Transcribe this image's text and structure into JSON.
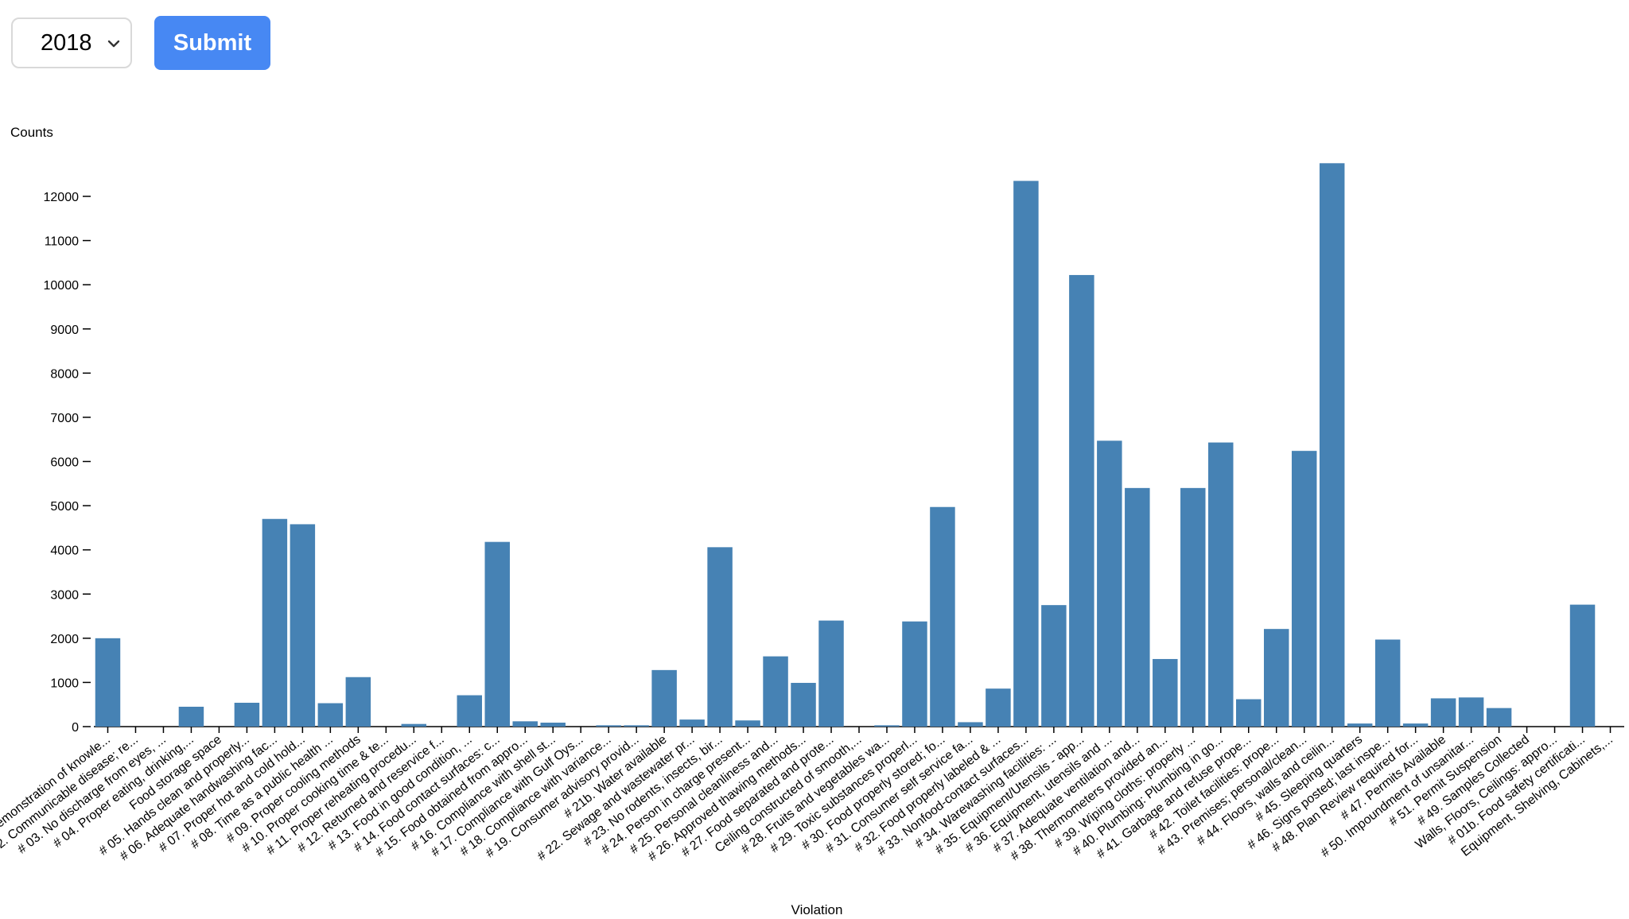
{
  "controls": {
    "year_value": "2018",
    "submit_label": "Submit"
  },
  "colors": {
    "bar": "#4682b4",
    "submit": "#4788f3"
  },
  "chart_data": {
    "type": "bar",
    "title": "",
    "xlabel": "Violation",
    "ylabel": "Counts",
    "ylim": [
      0,
      12800
    ],
    "yticks": [
      0,
      1000,
      2000,
      3000,
      4000,
      5000,
      6000,
      7000,
      8000,
      9000,
      10000,
      11000,
      12000
    ],
    "grid": false,
    "categories": [
      "Demonstration of knowle...",
      "# 02. Communicable disease; re...",
      "# 03. No discharge from eyes, ...",
      "# 04. Proper eating, drinking,...",
      "Food storage space",
      "# 05. Hands clean and properly...",
      "# 06. Adequate handwashing fac...",
      "# 07. Proper hot and cold hold...",
      "# 08. Time as a public health ...",
      "# 09. Proper cooling methods",
      "# 10. Proper cooking time & te...",
      "# 11. Proper reheating procedu...",
      "# 12. Returned and reservice f...",
      "# 13. Food in good condition, ...",
      "# 14. Food contact surfaces: c...",
      "# 15. Food obtained from appro...",
      "# 16. Compliance with shell st...",
      "# 17. Compliance with Gulf Oys...",
      "# 18. Compliance with variance...",
      "# 19. Consumer advisory provid...",
      "# 21b. Water available",
      "# 22. Sewage and wastewater pr...",
      "# 23. No rodents, insects, bir...",
      "# 24. Person in charge present...",
      "# 25. Personal cleanliness and...",
      "# 26. Approved thawing methods...",
      "# 27. Food separated and prote...",
      "Ceiling constructed of smooth,...",
      "# 28. Fruits and vegetables wa...",
      "# 29. Toxic substances properl...",
      "# 30. Food properly stored; fo...",
      "# 31. Consumer self service fa...",
      "# 32. Food properly labeled & ...",
      "# 33. Nonfood-contact surfaces...",
      "# 34. Warewashing facilities: ...",
      "# 35. Equipment/Utensils - app...",
      "# 36. Equipment, utensils and ...",
      "# 37. Adequate ventilation and...",
      "# 38. Thermometers provided an...",
      "# 39. Wiping cloths: properly ...",
      "# 40. Plumbing: Plumbing in go...",
      "# 41. Garbage and refuse prope...",
      "# 42. Toilet facilities: prope...",
      "# 43. Premises; personal/clean...",
      "# 44. Floors, walls and ceilin...",
      "# 45. Sleeping quarters",
      "# 46. Signs posted; last inspe...",
      "# 48. Plan Review required for...",
      "# 47. Permits Available",
      "# 50. Impoundment of unsanitar...",
      "# 51. Permit Suspension",
      "# 49. Samples Collected",
      "Walls, Floors, Ceilings: appro...",
      "# 01b. Food safety certificati...",
      "Equipment, Shelving, Cabinets,..."
    ],
    "values": [
      2000,
      0,
      0,
      450,
      0,
      540,
      4700,
      4580,
      530,
      1120,
      0,
      60,
      0,
      710,
      4180,
      120,
      90,
      0,
      30,
      30,
      1280,
      160,
      4060,
      140,
      1590,
      990,
      2400,
      0,
      30,
      2380,
      4970,
      100,
      860,
      12350,
      2750,
      10220,
      6470,
      5400,
      1530,
      5400,
      6430,
      620,
      2210,
      6240,
      12750,
      70,
      1970,
      70,
      640,
      660,
      420,
      0,
      0,
      2760,
      0
    ]
  }
}
